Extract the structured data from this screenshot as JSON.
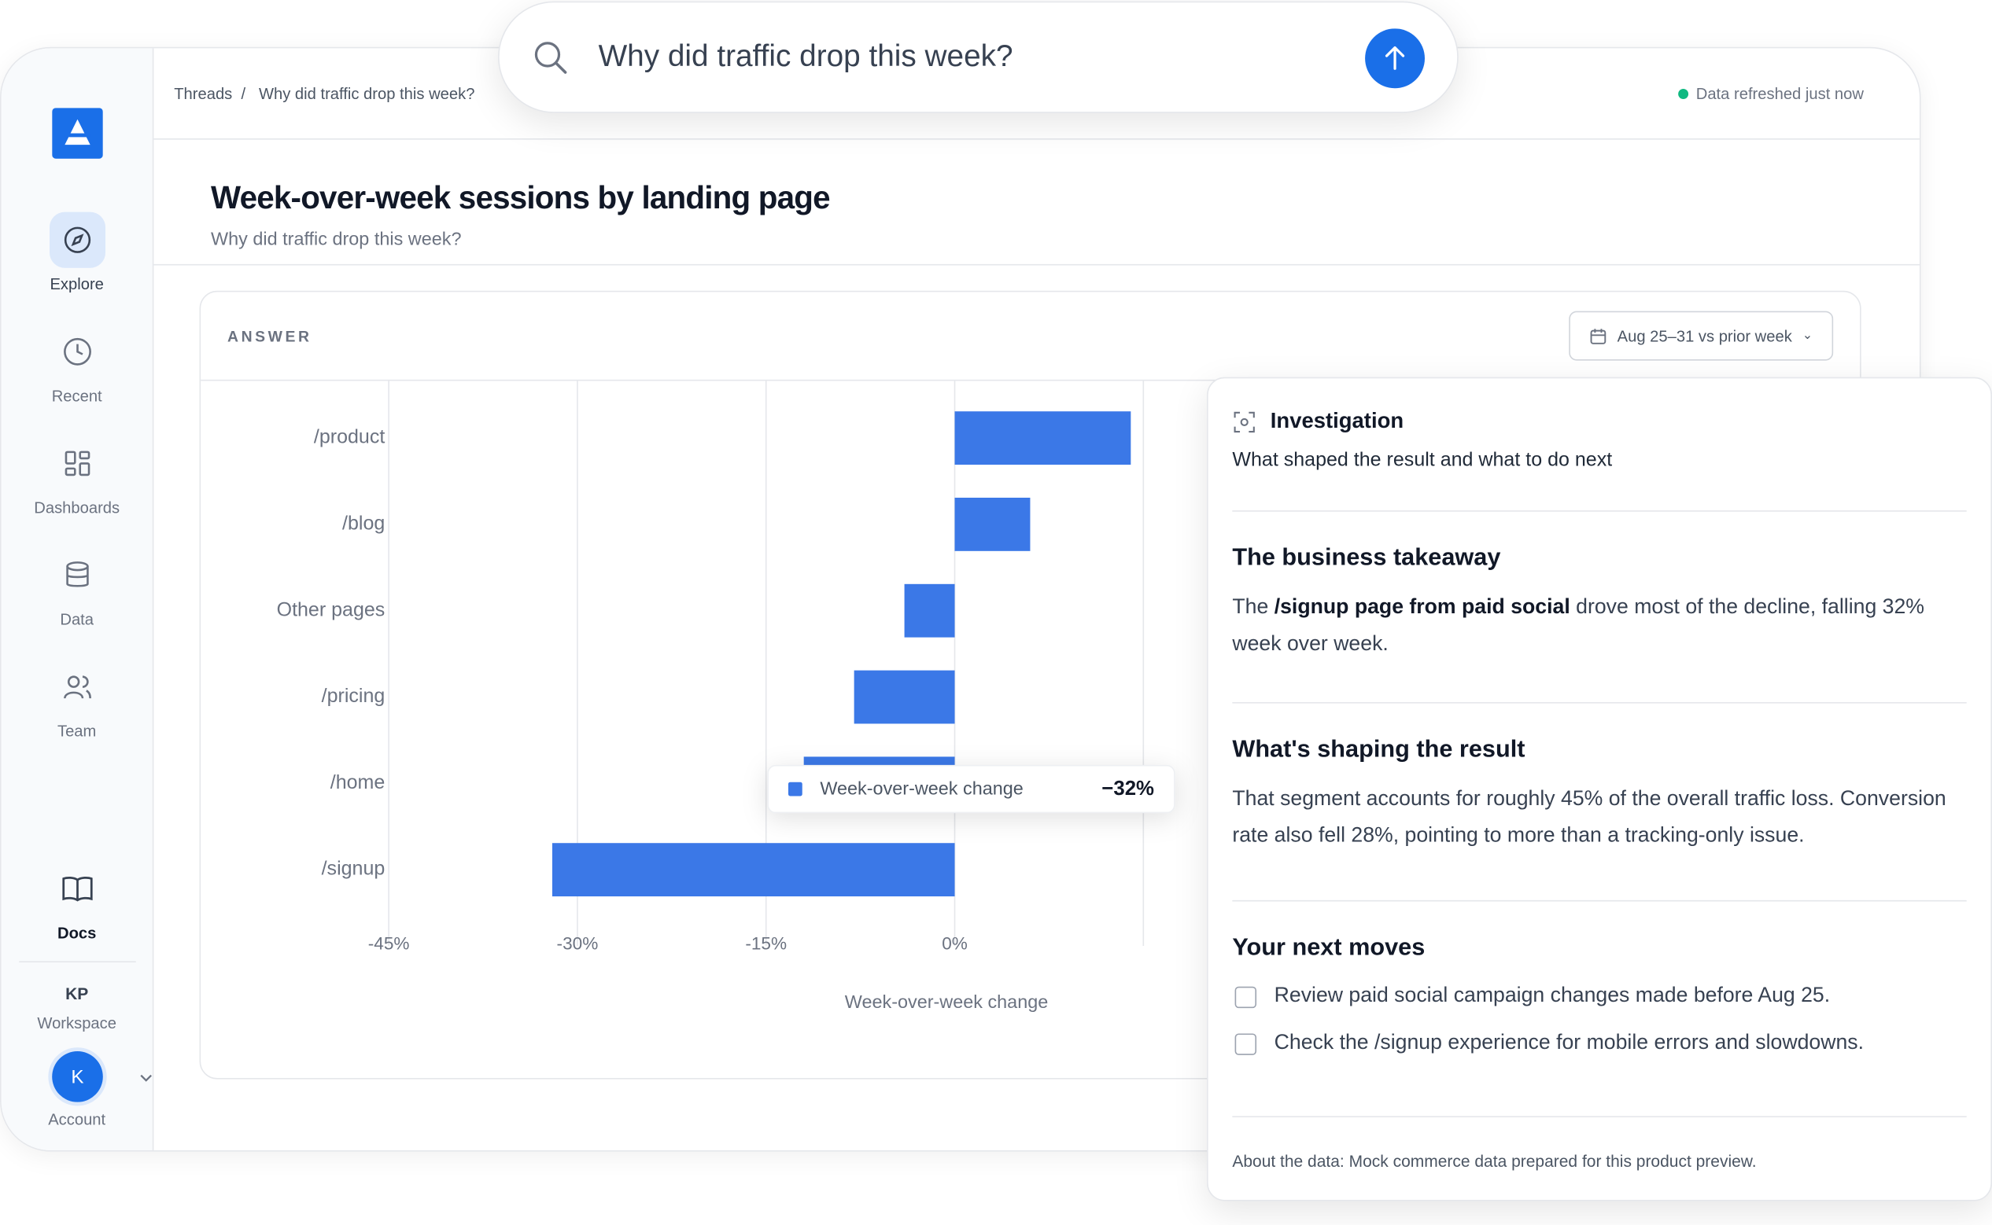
{
  "search": {
    "query": "Why did traffic drop this week?"
  },
  "sidebar": {
    "nav": [
      "Explore",
      "Recent",
      "Dashboards",
      "Data",
      "Team"
    ],
    "docs": "Docs",
    "workspace_initials": "KP",
    "workspace": "Workspace",
    "avatar": "K",
    "account": "Account"
  },
  "breadcrumb": [
    "Threads",
    "Why did traffic drop this week?"
  ],
  "status": "Data refreshed just now",
  "header": {
    "title": "Week-over-week sessions by landing page",
    "subtitle": "Why did traffic drop this week?"
  },
  "answer": {
    "label": "ANSWER",
    "date_range": "Aug 25–31 vs prior week"
  },
  "chart_data": {
    "type": "bar",
    "orientation": "horizontal",
    "categories": [
      "/product",
      "/blog",
      "Other pages",
      "/pricing",
      "/home",
      "/signup"
    ],
    "series": [
      {
        "name": "Week-over-week change",
        "color": "#3b78e7",
        "values": [
          14,
          6,
          -4,
          -8,
          -12,
          -32
        ],
        "value_labels": [
          null,
          null,
          null,
          null,
          null,
          "−32%"
        ]
      }
    ],
    "xlim": [
      -45,
      15
    ],
    "xticks": [
      {
        "value": -45,
        "label": "-45%"
      },
      {
        "value": -30,
        "label": "-30%"
      },
      {
        "value": -15,
        "label": "-15%"
      },
      {
        "value": 0,
        "label": "0%"
      },
      {
        "value": 15,
        "label": null
      }
    ],
    "x_label": "Week-over-week change",
    "grid": true
  },
  "investigation": {
    "title": "Investigation",
    "subtitle": "What shaped the result and what to do next",
    "takeaway_heading": "The business takeaway",
    "takeaway": {
      "before": "The",
      "bold": "/signup page from paid social",
      "after": "drove most of the decline, falling 32% week over week."
    },
    "shaping_heading": "What's shaping the result",
    "shaping": "That segment accounts for roughly 45% of the overall traffic loss. Conversion rate also fell 28%, pointing to more than a tracking-only issue.",
    "moves_heading": "Your next moves",
    "moves": [
      "Review paid social campaign changes made before Aug 25.",
      "Check the /signup experience for mobile errors and slowdowns."
    ],
    "footnote": "About the data: Mock commerce data prepared for this product preview."
  }
}
